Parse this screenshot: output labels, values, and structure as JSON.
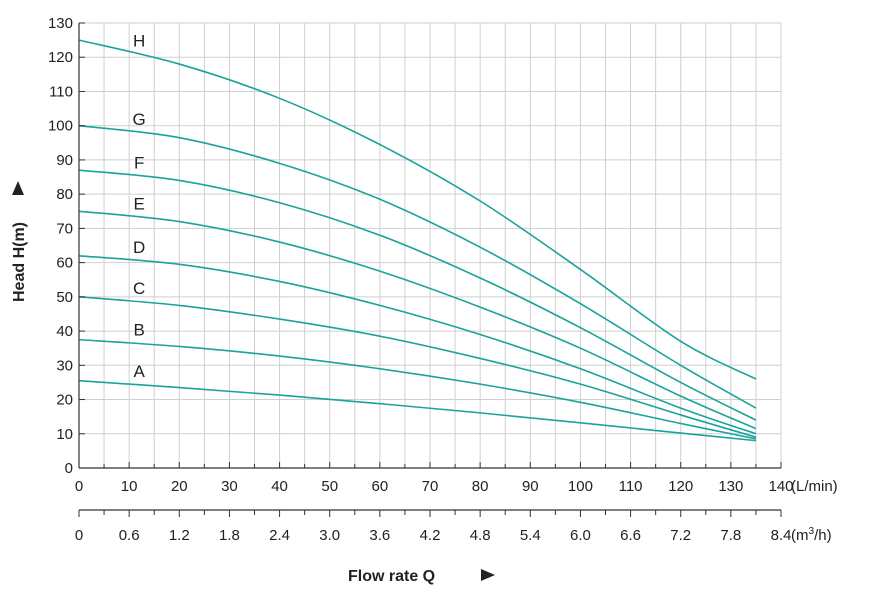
{
  "chart_data": {
    "type": "line",
    "ylabel": "Head H(m)",
    "xlabel": "Flow rate Q",
    "x_unit": "(L/min)",
    "x2_unit_prefix": "(m",
    "x2_unit_sup": "3",
    "x2_unit_suffix": "/h)",
    "xlim": [
      0,
      140
    ],
    "ylim": [
      0,
      130
    ],
    "x_ticks": [
      "0",
      "10",
      "20",
      "30",
      "40",
      "50",
      "60",
      "70",
      "80",
      "90",
      "100",
      "110",
      "120",
      "130",
      "140"
    ],
    "x2_ticks": [
      "0",
      "0.6",
      "1.2",
      "1.8",
      "2.4",
      "3.0",
      "3.6",
      "4.2",
      "4.8",
      "5.4",
      "6.0",
      "6.6",
      "7.2",
      "7.8",
      "8.4"
    ],
    "y_ticks": [
      "0",
      "10",
      "20",
      "30",
      "40",
      "50",
      "60",
      "70",
      "80",
      "90",
      "100",
      "110",
      "120",
      "130"
    ],
    "grid": true,
    "line_color": "#1aa39a",
    "series": [
      {
        "name": "A",
        "x": [
          0,
          20,
          40,
          60,
          80,
          100,
          120,
          135
        ],
        "y": [
          25.5,
          23.5,
          21.3,
          18.8,
          16.1,
          13.2,
          10.2,
          8.0
        ]
      },
      {
        "name": "B",
        "x": [
          0,
          20,
          40,
          60,
          80,
          100,
          120,
          135
        ],
        "y": [
          37.5,
          35.5,
          32.7,
          29.0,
          24.5,
          19.2,
          13.0,
          8.5
        ]
      },
      {
        "name": "C",
        "x": [
          0,
          20,
          40,
          60,
          80,
          100,
          120,
          135
        ],
        "y": [
          50.0,
          47.5,
          43.5,
          38.5,
          32.0,
          24.5,
          15.5,
          9.0
        ]
      },
      {
        "name": "D",
        "x": [
          0,
          20,
          40,
          60,
          80,
          100,
          120,
          135
        ],
        "y": [
          62.0,
          59.5,
          54.5,
          47.5,
          39.0,
          29.0,
          17.5,
          10.0
        ]
      },
      {
        "name": "E",
        "x": [
          0,
          20,
          40,
          60,
          80,
          100,
          120,
          135
        ],
        "y": [
          75.0,
          72.0,
          66.0,
          57.5,
          47.0,
          35.0,
          21.0,
          11.5
        ]
      },
      {
        "name": "F",
        "x": [
          0,
          20,
          40,
          60,
          80,
          100,
          120,
          135
        ],
        "y": [
          87.0,
          84.0,
          77.5,
          68.0,
          55.5,
          41.0,
          25.0,
          14.0
        ]
      },
      {
        "name": "G",
        "x": [
          0,
          20,
          40,
          60,
          80,
          100,
          120,
          135
        ],
        "y": [
          100.0,
          96.5,
          89.0,
          78.5,
          64.5,
          48.0,
          30.0,
          17.5
        ]
      },
      {
        "name": "H",
        "x": [
          0,
          20,
          40,
          60,
          80,
          100,
          120,
          135
        ],
        "y": [
          125.0,
          118.0,
          108.0,
          94.5,
          78.0,
          58.0,
          37.0,
          26.0
        ]
      }
    ]
  }
}
